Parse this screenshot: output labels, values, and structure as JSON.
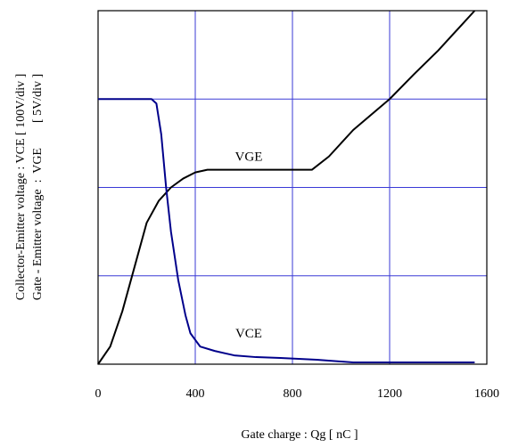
{
  "chart_data": {
    "type": "line",
    "xlabel": "Gate charge  :  Qg  [ nC ]",
    "ylabel_lines": [
      "Collector-Emitter voltage : VCE [ 100V/div ]",
      "Gate - Emitter voltage  :  VGE        [ 5V/div ]"
    ],
    "xlim": [
      0,
      1600
    ],
    "ylim": [
      0,
      4
    ],
    "x_ticks": [
      0,
      400,
      800,
      1200,
      1600
    ],
    "x_tick_labels": [
      "0",
      "400",
      "800",
      "1200",
      "1600"
    ],
    "y_ticks": [
      0,
      1,
      2,
      3,
      4
    ],
    "grid": true,
    "legend": "none",
    "series": [
      {
        "name": "VGE",
        "color": "#000000",
        "label_at": [
          620,
          2.3
        ],
        "x": [
          0,
          50,
          100,
          150,
          200,
          250,
          300,
          350,
          400,
          450,
          500,
          600,
          700,
          800,
          880,
          950,
          1050,
          1200,
          1300,
          1400,
          1500,
          1550
        ],
        "y": [
          0,
          0.2,
          0.6,
          1.1,
          1.6,
          1.85,
          2.0,
          2.1,
          2.17,
          2.2,
          2.2,
          2.2,
          2.2,
          2.2,
          2.2,
          2.35,
          2.65,
          3.0,
          3.28,
          3.55,
          3.85,
          4.0
        ]
      },
      {
        "name": "VCE",
        "color": "#00008b",
        "label_at": [
          620,
          0.3
        ],
        "x": [
          0,
          100,
          200,
          220,
          240,
          260,
          280,
          300,
          330,
          360,
          380,
          420,
          480,
          560,
          650,
          750,
          900,
          1050,
          1200,
          1400,
          1550
        ],
        "y": [
          3.0,
          3.0,
          3.0,
          3.0,
          2.95,
          2.6,
          2.0,
          1.5,
          0.95,
          0.55,
          0.35,
          0.2,
          0.15,
          0.1,
          0.08,
          0.07,
          0.05,
          0.02,
          0.02,
          0.02,
          0.02
        ]
      }
    ]
  }
}
